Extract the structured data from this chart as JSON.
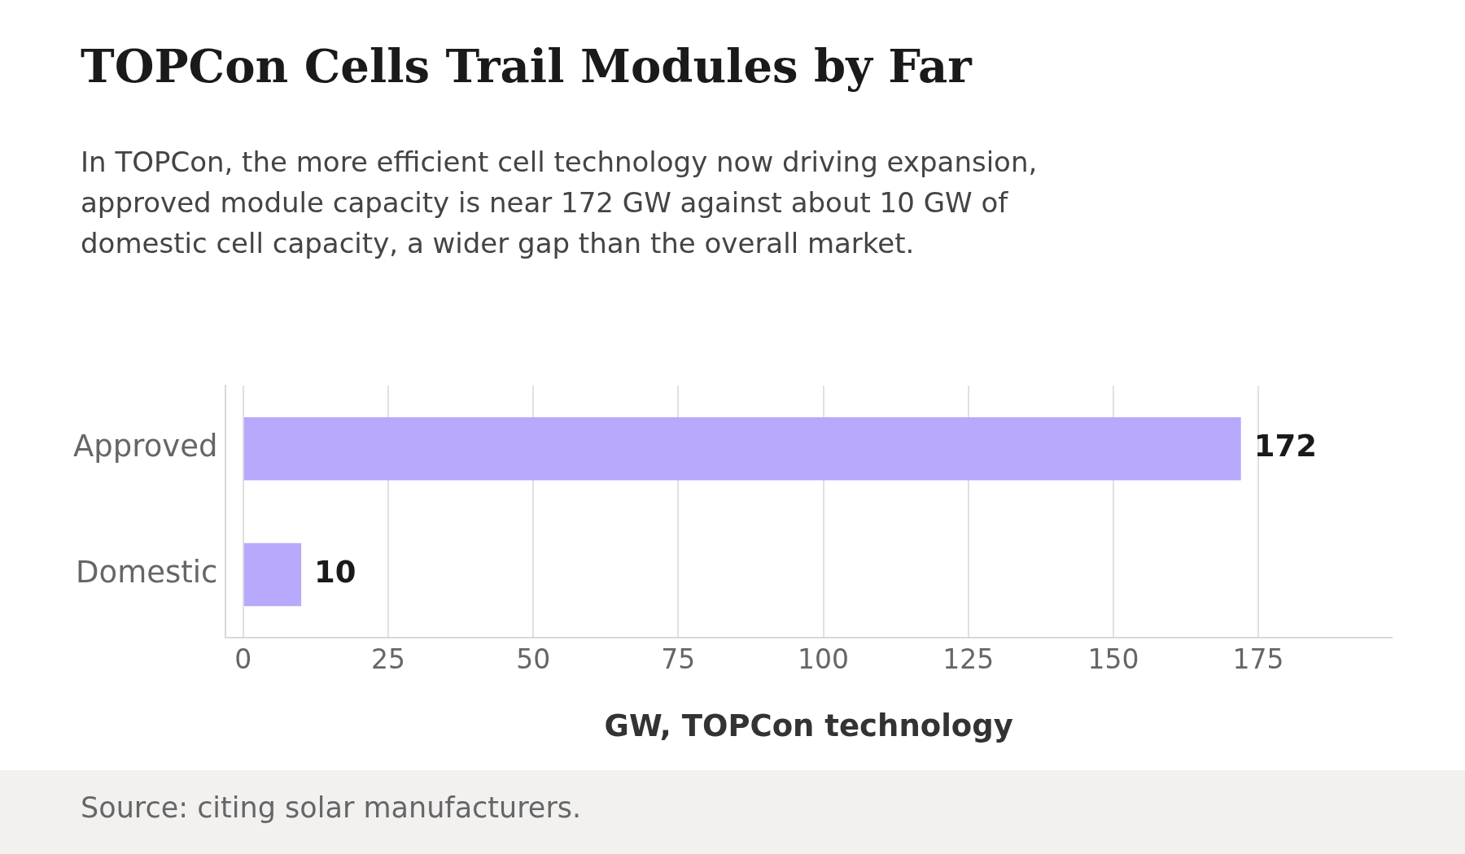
{
  "chart_data": {
    "type": "bar",
    "orientation": "horizontal",
    "title": "TOPCon Cells Trail Modules by Far",
    "subtitle": "In TOPCon, the more efficient cell technology now driving expansion, approved module capacity is near 172 GW against about 10 GW of domestic cell capacity, a wider gap than the overall market.",
    "xlabel": "GW, TOPCon technology",
    "annotations": [
      "Source: citing solar manufacturers."
    ],
    "categories": [
      "Approved",
      "Domestic"
    ],
    "values": [
      172,
      10
    ],
    "color": "#b8a9fc",
    "xlim": [
      -3,
      198
    ],
    "xticks": [
      0,
      25,
      50,
      75,
      100,
      125,
      150,
      175
    ],
    "grid": "x",
    "data_labels": true,
    "legend": false
  }
}
